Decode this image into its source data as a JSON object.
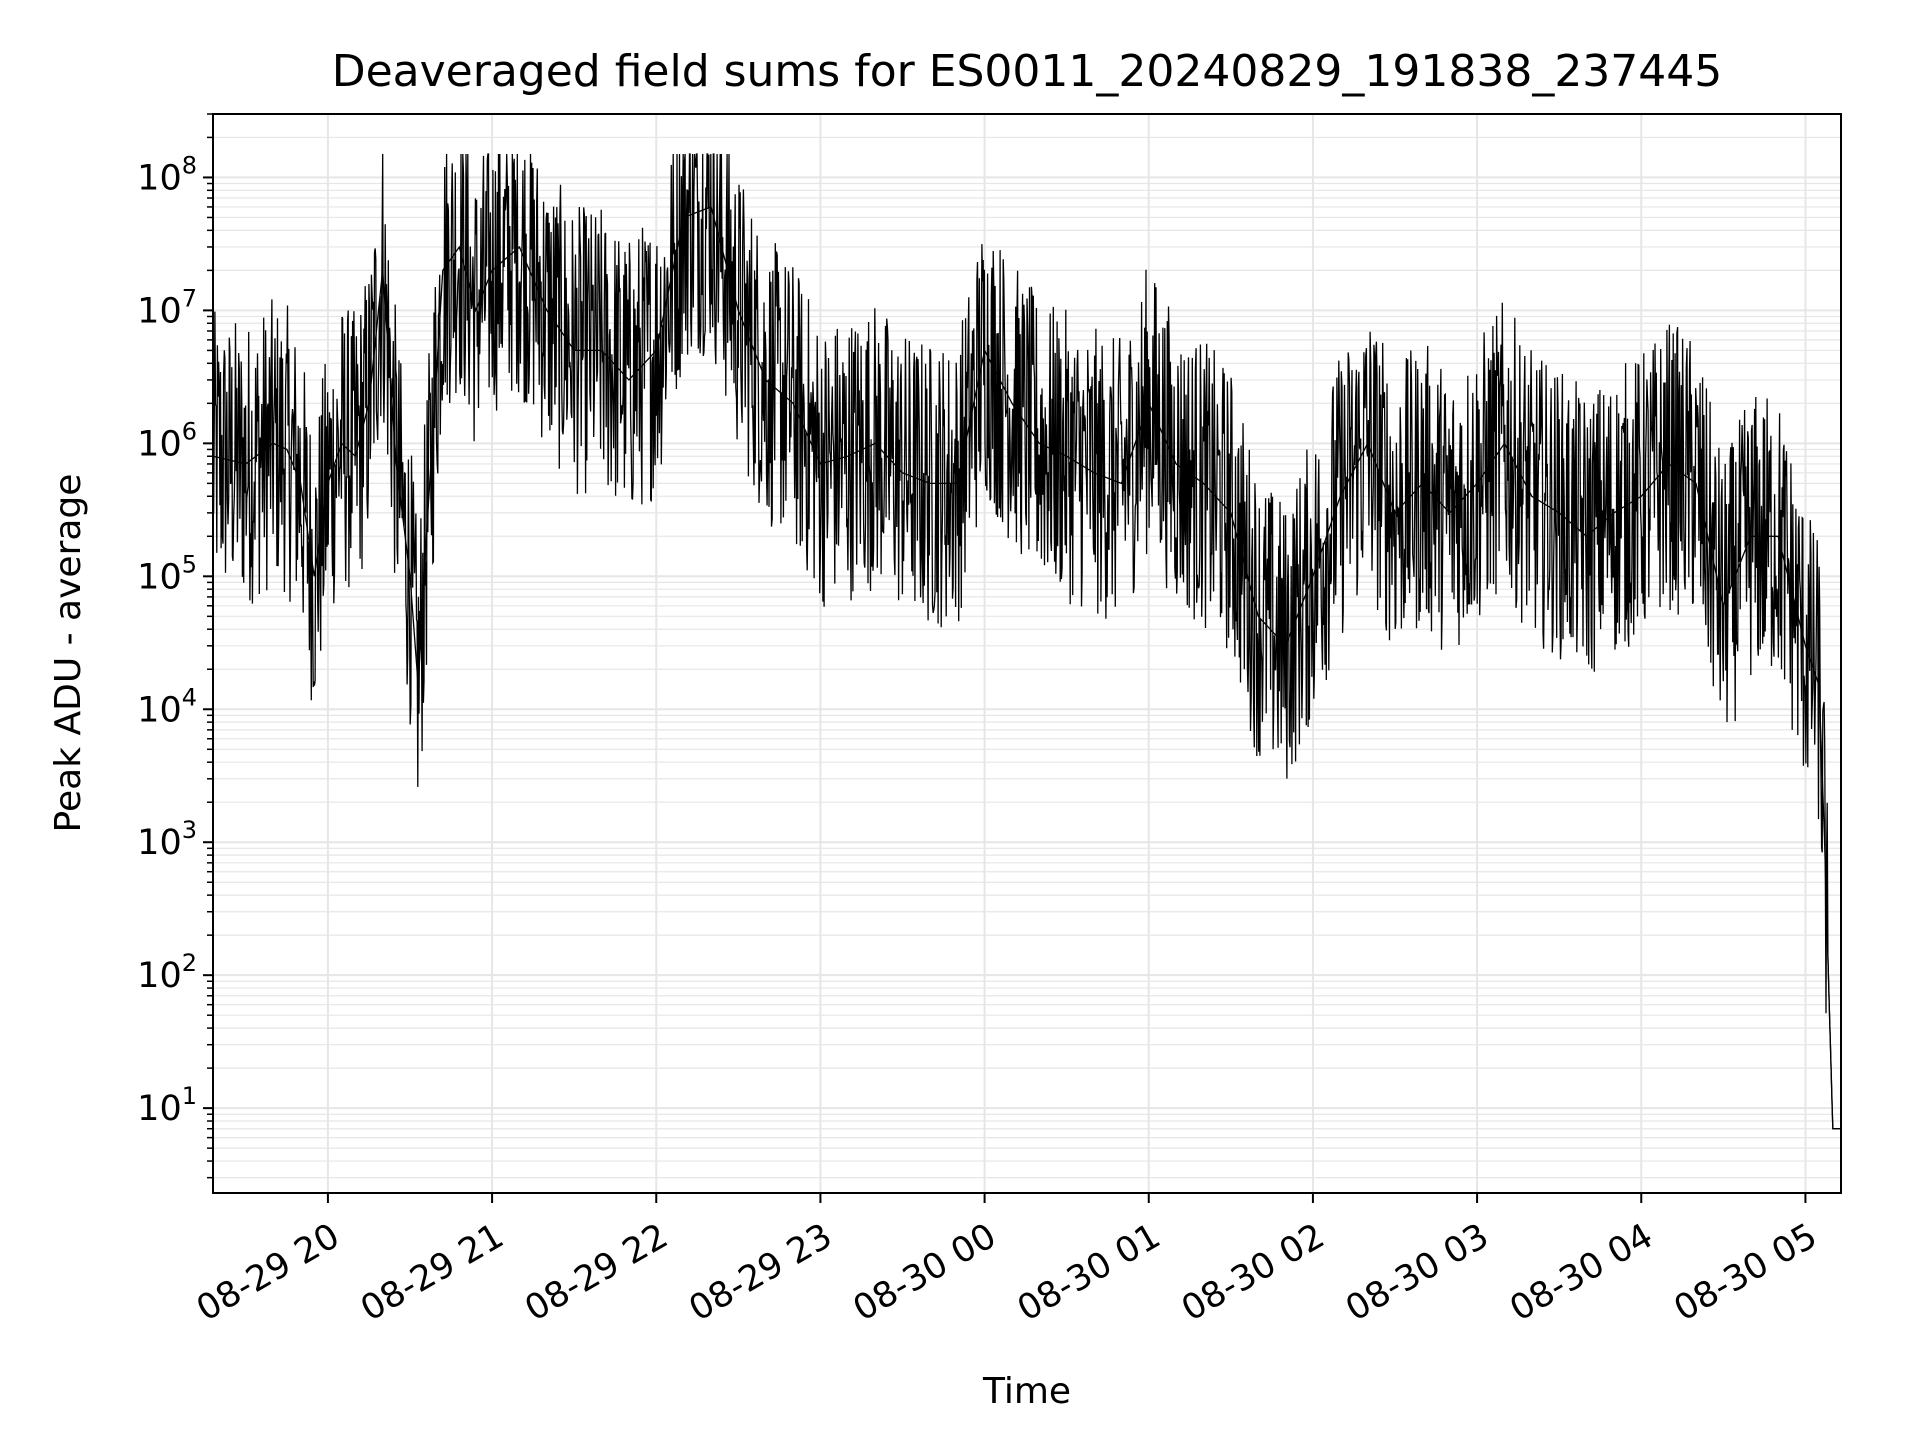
{
  "chart_data": {
    "type": "line",
    "title": "Deaveraged field sums for ES0011_20240829_191838_237445",
    "xlabel": "Time",
    "ylabel": "Peak ADU - average",
    "yscale": "log",
    "ylim": [
      2.3,
      300000000
    ],
    "xlim": [
      "2024-08-29 19:18",
      "2024-08-30 05:13"
    ],
    "x_ticks": [
      {
        "value": "2024-08-29 20:00",
        "label": "08-29 20"
      },
      {
        "value": "2024-08-29 21:00",
        "label": "08-29 21"
      },
      {
        "value": "2024-08-29 22:00",
        "label": "08-29 22"
      },
      {
        "value": "2024-08-29 23:00",
        "label": "08-29 23"
      },
      {
        "value": "2024-08-30 00:00",
        "label": "08-30 00"
      },
      {
        "value": "2024-08-30 01:00",
        "label": "08-30 01"
      },
      {
        "value": "2024-08-30 02:00",
        "label": "08-30 02"
      },
      {
        "value": "2024-08-30 03:00",
        "label": "08-30 03"
      },
      {
        "value": "2024-08-30 04:00",
        "label": "08-30 04"
      },
      {
        "value": "2024-08-30 05:00",
        "label": "08-30 05"
      }
    ],
    "y_ticks": [
      {
        "value": 10,
        "base": "10",
        "exp": "1"
      },
      {
        "value": 100,
        "base": "10",
        "exp": "2"
      },
      {
        "value": 1000,
        "base": "10",
        "exp": "3"
      },
      {
        "value": 10000,
        "base": "10",
        "exp": "4"
      },
      {
        "value": 100000,
        "base": "10",
        "exp": "5"
      },
      {
        "value": 1000000,
        "base": "10",
        "exp": "6"
      },
      {
        "value": 10000000,
        "base": "10",
        "exp": "7"
      },
      {
        "value": 100000000,
        "base": "10",
        "exp": "8"
      }
    ],
    "grid": "major and minor",
    "line_color": "#000000",
    "grid_color": "#e6e6e6",
    "series": [
      {
        "x": [
          "2024-08-29 19:18",
          "2024-08-29 19:30",
          "2024-08-29 19:40",
          "2024-08-29 19:45",
          "2024-08-29 19:50",
          "2024-08-29 19:55",
          "2024-08-29 20:00",
          "2024-08-29 20:05",
          "2024-08-29 20:10",
          "2024-08-29 20:15",
          "2024-08-29 20:20",
          "2024-08-29 20:25",
          "2024-08-29 20:30",
          "2024-08-29 20:33",
          "2024-08-29 20:36",
          "2024-08-29 20:42",
          "2024-08-29 20:48",
          "2024-08-29 20:54",
          "2024-08-29 21:00",
          "2024-08-29 21:10",
          "2024-08-29 21:20",
          "2024-08-29 21:30",
          "2024-08-29 21:40",
          "2024-08-29 21:50",
          "2024-08-29 22:00",
          "2024-08-29 22:10",
          "2024-08-29 22:20",
          "2024-08-29 22:30",
          "2024-08-29 22:40",
          "2024-08-29 22:50",
          "2024-08-29 23:00",
          "2024-08-29 23:10",
          "2024-08-29 23:20",
          "2024-08-29 23:30",
          "2024-08-29 23:40",
          "2024-08-29 23:50",
          "2024-08-30 00:00",
          "2024-08-30 00:10",
          "2024-08-30 00:20",
          "2024-08-30 00:30",
          "2024-08-30 00:40",
          "2024-08-30 00:50",
          "2024-08-30 01:00",
          "2024-08-30 01:10",
          "2024-08-30 01:20",
          "2024-08-30 01:30",
          "2024-08-30 01:40",
          "2024-08-30 01:50",
          "2024-08-30 02:00",
          "2024-08-30 02:10",
          "2024-08-30 02:20",
          "2024-08-30 02:30",
          "2024-08-30 02:40",
          "2024-08-30 02:50",
          "2024-08-30 03:00",
          "2024-08-30 03:10",
          "2024-08-30 03:20",
          "2024-08-30 03:30",
          "2024-08-30 03:40",
          "2024-08-30 03:50",
          "2024-08-30 04:00",
          "2024-08-30 04:10",
          "2024-08-30 04:20",
          "2024-08-30 04:30",
          "2024-08-30 04:40",
          "2024-08-30 04:50",
          "2024-08-30 05:00",
          "2024-08-30 05:03",
          "2024-08-30 05:05",
          "2024-08-30 05:07",
          "2024-08-30 05:10",
          "2024-08-30 05:13"
        ],
        "values": [
          800000,
          700000,
          1000000,
          900000,
          500000,
          100000,
          500000,
          1000000,
          800000,
          2000000,
          20000000,
          700000,
          100000,
          15000,
          200000,
          20000000,
          30000000,
          10000000,
          20000000,
          30000000,
          10000000,
          5000000,
          5000000,
          3000000,
          5000000,
          50000000,
          60000000,
          10000000,
          3000000,
          2000000,
          700000,
          800000,
          1000000,
          600000,
          500000,
          500000,
          5000000,
          2000000,
          1000000,
          800000,
          600000,
          500000,
          2000000,
          700000,
          500000,
          300000,
          50000,
          30000,
          100000,
          400000,
          1000000,
          300000,
          500000,
          300000,
          500000,
          1000000,
          400000,
          300000,
          200000,
          300000,
          400000,
          700000,
          500000,
          60000,
          200000,
          200000,
          30000,
          20000,
          15000,
          1000,
          7,
          7
        ]
      }
    ]
  }
}
